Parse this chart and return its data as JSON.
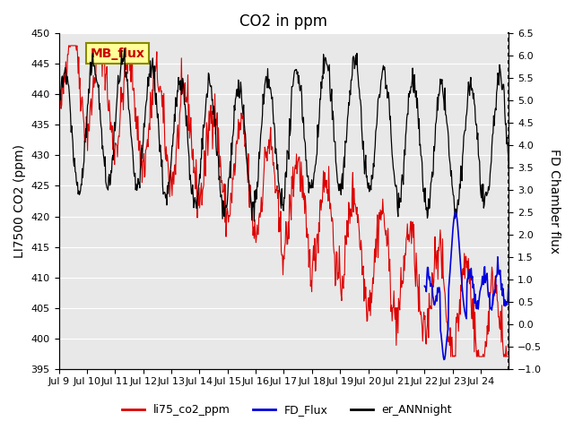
{
  "title": "CO2 in ppm",
  "ylabel_left": "LI7500 CO2 (ppm)",
  "ylabel_right": "FD Chamber flux",
  "ylim_left": [
    395,
    450
  ],
  "ylim_right": [
    -1.0,
    6.5
  ],
  "yticks_left": [
    395,
    400,
    405,
    410,
    415,
    420,
    425,
    430,
    435,
    440,
    445,
    450
  ],
  "yticks_right": [
    -1.0,
    -0.5,
    0.0,
    0.5,
    1.0,
    1.5,
    2.0,
    2.5,
    3.0,
    3.5,
    4.0,
    4.5,
    5.0,
    5.5,
    6.0,
    6.5
  ],
  "xticklabels": [
    "Jul 9",
    "Jul 10",
    "Jul 11",
    "Jul 12",
    "Jul 13",
    "Jul 14",
    "Jul 15",
    "Jul 16",
    "Jul 17",
    "Jul 18",
    "Jul 19",
    "Jul 20",
    "Jul 21",
    "Jul 22",
    "Jul 23",
    "Jul 24"
  ],
  "color_red": "#dd0000",
  "color_blue": "#0000dd",
  "color_black": "#000000",
  "annotation_text": "MB_flux",
  "annotation_facecolor": "#ffff99",
  "annotation_edgecolor": "#888800",
  "background_color": "#e8e8e8",
  "legend_labels": [
    "li75_co2_ppm",
    "FD_Flux",
    "er_ANNnight"
  ],
  "title_fontsize": 12,
  "axis_fontsize": 10
}
